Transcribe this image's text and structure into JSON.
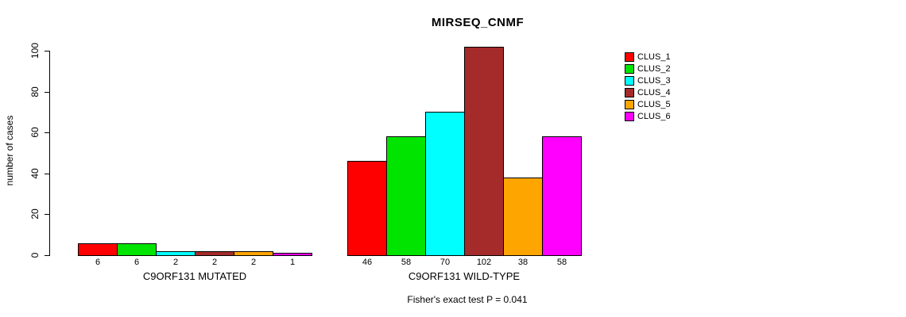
{
  "chart_data": {
    "type": "bar",
    "title": "MIRSEQ_CNMF",
    "ylabel": "number of cases",
    "ylim": [
      0,
      100
    ],
    "yticks": [
      0,
      20,
      40,
      60,
      80,
      100
    ],
    "grid": false,
    "legend_position": "right",
    "clusters": [
      {
        "name": "CLUS_1",
        "color": "#ff0000"
      },
      {
        "name": "CLUS_2",
        "color": "#00e400"
      },
      {
        "name": "CLUS_3",
        "color": "#00ffff"
      },
      {
        "name": "CLUS_4",
        "color": "#a52a2a"
      },
      {
        "name": "CLUS_5",
        "color": "#ffa500"
      },
      {
        "name": "CLUS_6",
        "color": "#ff00ff"
      }
    ],
    "groups": [
      {
        "label": "C9ORF131 MUTATED",
        "values": [
          6,
          6,
          2,
          2,
          2,
          1
        ]
      },
      {
        "label": "C9ORF131 WILD-TYPE",
        "values": [
          46,
          58,
          70,
          102,
          38,
          58
        ]
      }
    ],
    "footnote": "Fisher's exact test P = 0.041"
  }
}
